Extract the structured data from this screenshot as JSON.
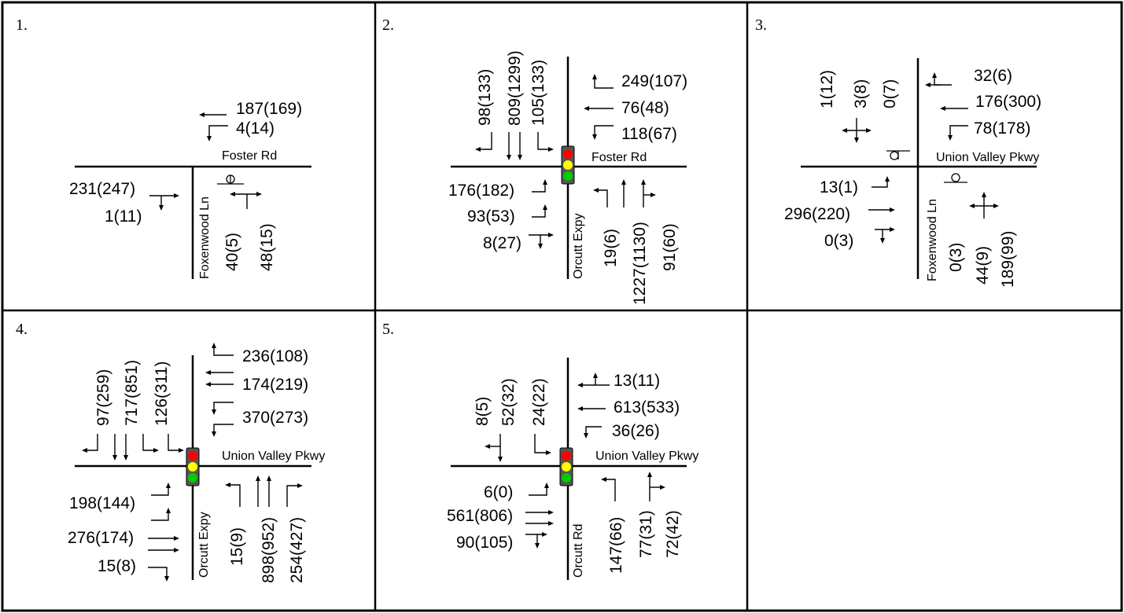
{
  "colors": {
    "border": "#000000",
    "signal_red": "#ff0000",
    "signal_yellow": "#ffff00",
    "signal_green": "#00cc00",
    "signal_housing": "#555555"
  },
  "panels": [
    {
      "number": "1.",
      "control": "stop-sign",
      "streets": {
        "east_west": "Foster Rd",
        "north_south": "Foxenwood Ln"
      },
      "volumes": {
        "westbound_through": "187(169)",
        "westbound_left": "4(14)",
        "eastbound_through": "231(247)",
        "eastbound_right": "1(11)",
        "northbound_left": "40(5)",
        "northbound_right": "48(15)"
      }
    },
    {
      "number": "2.",
      "control": "signal",
      "streets": {
        "east_west": "Foster Rd",
        "north_south": "Orcutt Expy"
      },
      "volumes": {
        "southbound_right": "98(133)",
        "southbound_through": "809(1299)",
        "southbound_left": "105(133)",
        "westbound_right": "249(107)",
        "westbound_through": "76(48)",
        "westbound_left": "118(67)",
        "eastbound_left": "176(182)",
        "eastbound_through": "93(53)",
        "eastbound_right": "8(27)",
        "northbound_left": "19(6)",
        "northbound_through": "1227(1130)",
        "northbound_right": "91(60)"
      }
    },
    {
      "number": "3.",
      "control": "stop-sign",
      "streets": {
        "east_west": "Union Valley Pkwy",
        "north_south": "Foxenwood Ln"
      },
      "volumes": {
        "southbound_right": "1(12)",
        "southbound_through": "3(8)",
        "southbound_left": "0(7)",
        "westbound_right": "32(6)",
        "westbound_through": "176(300)",
        "westbound_left": "78(178)",
        "eastbound_left": "13(1)",
        "eastbound_through": "296(220)",
        "eastbound_right": "0(3)",
        "northbound_left": "0(3)",
        "northbound_through": "44(9)",
        "northbound_right": "189(99)"
      }
    },
    {
      "number": "4.",
      "control": "signal",
      "streets": {
        "east_west": "Union Valley Pkwy",
        "north_south": "Orcutt Expy"
      },
      "volumes": {
        "southbound_right": "97(259)",
        "southbound_through": "717(851)",
        "southbound_left": "126(311)",
        "westbound_right": "236(108)",
        "westbound_through": "174(219)",
        "westbound_left": "370(273)",
        "eastbound_left": "198(144)",
        "eastbound_through": "276(174)",
        "eastbound_right": "15(8)",
        "northbound_left": "15(9)",
        "northbound_through": "898(952)",
        "northbound_right": "254(427)"
      }
    },
    {
      "number": "5.",
      "control": "signal",
      "streets": {
        "east_west": "Union Valley Pkwy",
        "north_south": "Orcutt Rd"
      },
      "volumes": {
        "southbound_right": "8(5)",
        "southbound_through": "52(32)",
        "southbound_left": "24(22)",
        "westbound_right": "13(11)",
        "westbound_through": "613(533)",
        "westbound_left": "36(26)",
        "eastbound_left": "6(0)",
        "eastbound_through": "561(806)",
        "eastbound_right": "90(105)",
        "northbound_left": "147(66)",
        "northbound_through": "77(31)",
        "northbound_right": "72(42)"
      }
    }
  ]
}
